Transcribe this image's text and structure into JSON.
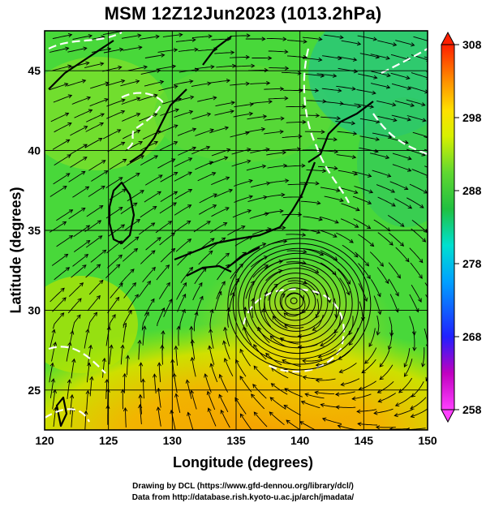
{
  "title": "MSM 12Z12Jun2023 (1013.2hPa)",
  "axes": {
    "xlabel": "Longitude (degrees)",
    "ylabel": "Latitude  (degrees)",
    "x_ticks": [
      "120",
      "125",
      "130",
      "135",
      "140",
      "145",
      "150"
    ],
    "y_ticks": [
      "25",
      "30",
      "35",
      "40",
      "45"
    ]
  },
  "colorbar": {
    "ticks": [
      "308",
      "298",
      "288",
      "278",
      "268",
      "258"
    ],
    "colors": [
      "#ff40ff",
      "#d000d0",
      "#2020ff",
      "#00a0ff",
      "#00e0e0",
      "#00c060",
      "#40d040",
      "#c0f000",
      "#ffff00",
      "#ffc000",
      "#ff8000",
      "#ff3000",
      "#e02000"
    ]
  },
  "credits": {
    "line1": "Drawing by DCL (https://www.gfd-dennou.org/library/dcl/)",
    "line2": "Data from http://database.rish.kyoto-u.ac.jp/arch/jmadata/"
  },
  "map": {
    "lon_range": [
      120,
      150
    ],
    "lat_range": [
      22.5,
      47.5
    ],
    "typhoon_center": {
      "lon": 139.5,
      "lat": 30.6
    }
  }
}
